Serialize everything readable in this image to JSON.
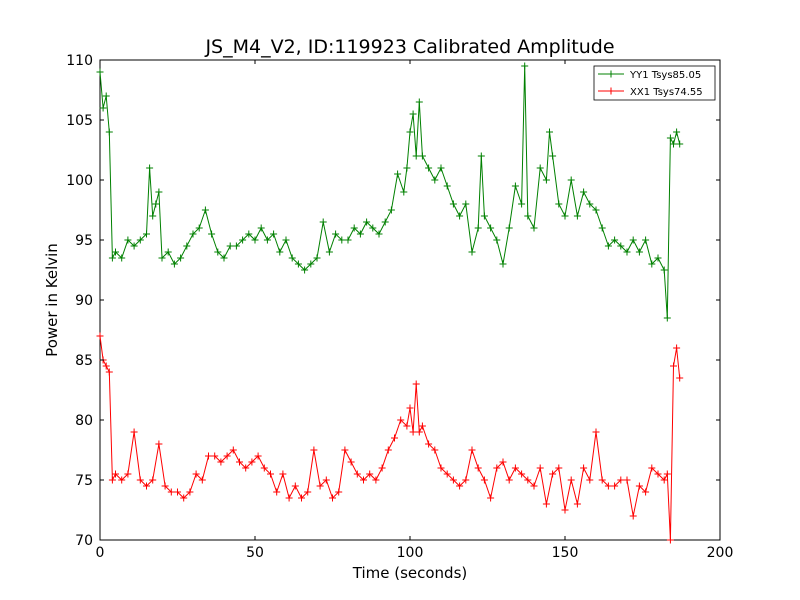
{
  "chart_data": {
    "type": "line",
    "title": "JS_M4_V2, ID:119923 Calibrated Amplitude",
    "xlabel": "Time (seconds)",
    "ylabel": "Power in Kelvin",
    "xlim": [
      0,
      200
    ],
    "ylim": [
      70,
      110
    ],
    "xticks": [
      "0",
      "50",
      "100",
      "150",
      "200"
    ],
    "yticks": [
      "70",
      "75",
      "80",
      "85",
      "90",
      "95",
      "100",
      "105",
      "110"
    ],
    "grid": false,
    "legend_position": "top-right",
    "marker": "+",
    "series": [
      {
        "name": "YY1 Tsys85.05",
        "color": "#008000",
        "x": [
          0,
          1,
          2,
          3,
          4,
          5,
          7,
          9,
          11,
          13,
          15,
          16,
          17,
          18,
          19,
          20,
          22,
          24,
          26,
          28,
          30,
          32,
          34,
          36,
          38,
          40,
          42,
          44,
          46,
          48,
          50,
          52,
          54,
          56,
          58,
          60,
          62,
          64,
          66,
          68,
          70,
          72,
          74,
          76,
          78,
          80,
          82,
          84,
          86,
          88,
          90,
          92,
          94,
          96,
          98,
          99,
          100,
          101,
          102,
          103,
          104,
          106,
          108,
          110,
          112,
          114,
          116,
          118,
          120,
          122,
          123,
          124,
          126,
          128,
          130,
          132,
          134,
          136,
          137,
          138,
          140,
          142,
          144,
          145,
          146,
          148,
          150,
          152,
          154,
          156,
          158,
          160,
          162,
          164,
          166,
          168,
          170,
          172,
          174,
          176,
          178,
          180,
          182,
          183,
          184,
          185,
          186,
          187
        ],
        "y": [
          109,
          106,
          107,
          104,
          93.5,
          94,
          93.5,
          95,
          94.5,
          95,
          95.5,
          101,
          97,
          98,
          99,
          93.5,
          94,
          93,
          93.5,
          94.5,
          95.5,
          96,
          97.5,
          95.5,
          94,
          93.5,
          94.5,
          94.5,
          95,
          95.5,
          95,
          96,
          95,
          95.5,
          94,
          95,
          93.5,
          93,
          92.5,
          93,
          93.5,
          96.5,
          94,
          95.5,
          95,
          95,
          96,
          95.5,
          96.5,
          96,
          95.5,
          96.5,
          97.5,
          100.5,
          99,
          101,
          104,
          105.5,
          102,
          106.5,
          102,
          101,
          100,
          101,
          99.5,
          98,
          97,
          98,
          94,
          96,
          102,
          97,
          96,
          95,
          93,
          96,
          99.5,
          98,
          109.5,
          97,
          96,
          101,
          100,
          104,
          102,
          98,
          97,
          100,
          97,
          99,
          98,
          97.5,
          96,
          94.5,
          95,
          94.5,
          94,
          95,
          94,
          95,
          93,
          93.5,
          92.5,
          88.5,
          103.5,
          103,
          104,
          103
        ]
      },
      {
        "name": "XX1 Tsys74.55",
        "color": "#ff0000",
        "x": [
          0,
          1,
          2,
          3,
          4,
          5,
          7,
          9,
          11,
          13,
          15,
          17,
          19,
          21,
          23,
          25,
          27,
          29,
          31,
          33,
          35,
          37,
          39,
          41,
          43,
          45,
          47,
          49,
          51,
          53,
          55,
          57,
          59,
          61,
          63,
          65,
          67,
          69,
          71,
          73,
          75,
          77,
          79,
          81,
          83,
          85,
          87,
          89,
          91,
          93,
          95,
          97,
          99,
          100,
          101,
          102,
          103,
          104,
          106,
          108,
          110,
          112,
          114,
          116,
          118,
          120,
          122,
          124,
          126,
          128,
          130,
          132,
          134,
          136,
          138,
          140,
          142,
          144,
          146,
          148,
          150,
          152,
          154,
          156,
          158,
          160,
          162,
          164,
          166,
          168,
          170,
          172,
          174,
          176,
          178,
          180,
          182,
          183,
          184,
          185,
          186,
          187
        ],
        "y": [
          87,
          85,
          84.5,
          84,
          75,
          75.5,
          75,
          75.5,
          79,
          75,
          74.5,
          75,
          78,
          74.5,
          74,
          74,
          73.5,
          74,
          75.5,
          75,
          77,
          77,
          76.5,
          77,
          77.5,
          76.5,
          76,
          76.5,
          77,
          76,
          75.5,
          74,
          75.5,
          73.5,
          74.5,
          73.5,
          74,
          77.5,
          74.5,
          75,
          73.5,
          74,
          77.5,
          76.5,
          75.5,
          75,
          75.5,
          75,
          76,
          77.5,
          78.5,
          80,
          79.5,
          81,
          79,
          83,
          79,
          79.5,
          78,
          77.5,
          76,
          75.5,
          75,
          74.5,
          75,
          77.5,
          76,
          75,
          73.5,
          76,
          76.5,
          75,
          76,
          75.5,
          75,
          74.5,
          76,
          73,
          75.5,
          76,
          72.5,
          75,
          73,
          76,
          75,
          79,
          75,
          74.5,
          74.5,
          75,
          75,
          72,
          74.5,
          74,
          76,
          75.5,
          75,
          75.5,
          70,
          84.5,
          86,
          83.5
        ]
      }
    ]
  }
}
